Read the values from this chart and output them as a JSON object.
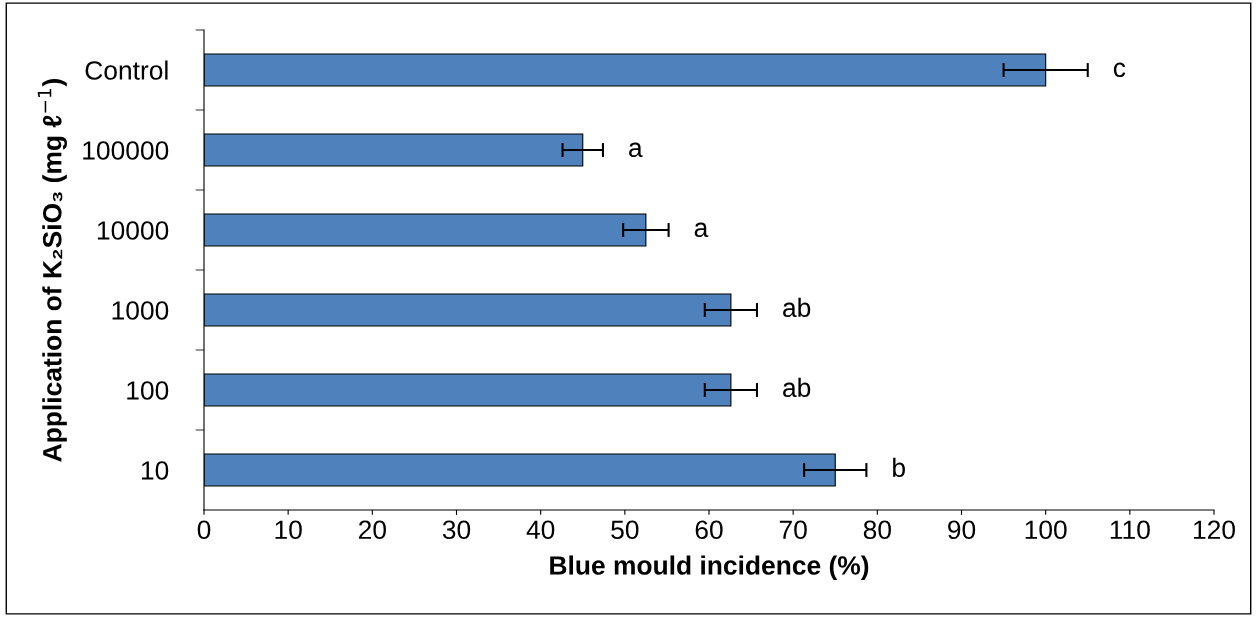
{
  "chart_data": {
    "type": "bar",
    "orientation": "horizontal",
    "xlabel": "Blue mould incidence (%)",
    "ylabel": "Application of K₂SiO₃ (mg ℓ$^{−1}$)",
    "categories": [
      "Control",
      "100000",
      "10000",
      "1000",
      "100",
      "10"
    ],
    "values": [
      100,
      45,
      52.5,
      62.6,
      62.6,
      75
    ],
    "errors": [
      5,
      2.4,
      2.7,
      3.1,
      3.1,
      3.7
    ],
    "color": "#4f81bd",
    "xlim": [
      0,
      120
    ],
    "xticks": [
      0,
      10,
      20,
      30,
      40,
      50,
      60,
      70,
      80,
      90,
      100,
      110,
      120
    ],
    "grid": false,
    "annotations": [
      "c",
      "a",
      "a",
      "ab",
      "ab",
      "b"
    ]
  }
}
